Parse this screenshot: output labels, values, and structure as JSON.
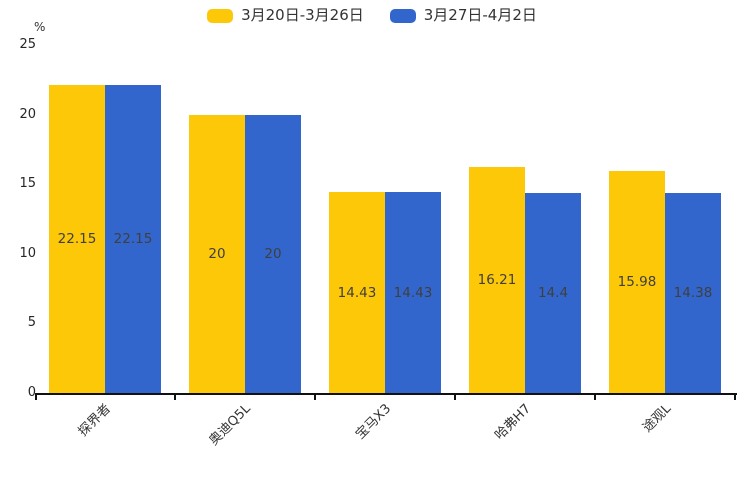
{
  "chart_data": {
    "type": "bar",
    "title": "",
    "unit_label": "%",
    "categories": [
      "探界者",
      "奥迪Q5L",
      "宝马X3",
      "哈弗H7",
      "途观L"
    ],
    "series": [
      {
        "name": "3月20日-3月26日",
        "color": "#FDC808",
        "values": [
          22.15,
          20,
          14.43,
          16.21,
          15.98
        ]
      },
      {
        "name": "3月27日-4月2日",
        "color": "#3366CC",
        "values": [
          22.15,
          20,
          14.43,
          14.4,
          14.38
        ]
      }
    ],
    "ylim": [
      0,
      25
    ],
    "yticks": [
      0,
      5,
      10,
      15,
      20,
      25
    ],
    "xlabel": "",
    "ylabel": "",
    "legend_position": "top",
    "grid": false,
    "bar_value_labels": true,
    "axis_color": "#111111",
    "tick_text_color": "#262626",
    "value_label_color": "#3f3f3f"
  }
}
